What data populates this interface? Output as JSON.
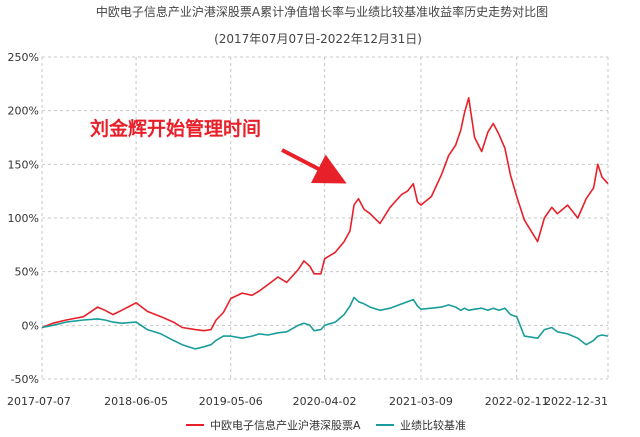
{
  "chart_data": {
    "type": "line",
    "title": "中欧电子信息产业沪港深股票A累计净值增长率与业绩比较基准收益率历史走势对比图",
    "subtitle": "(2017年07月07日-2022年12月31日)",
    "xlabel": "",
    "ylabel": "",
    "ylim": [
      -50,
      250
    ],
    "yticks": [
      "250%",
      "200%",
      "150%",
      "100%",
      "50%",
      "0%",
      "-50%"
    ],
    "xticks": [
      "2017-07-07",
      "2018-06-05",
      "2019-05-06",
      "2020-04-02",
      "2021-03-09",
      "2022-02-11",
      "2022-12-31"
    ],
    "grid": true,
    "legend_position": "bottom",
    "annotation": "刘金辉开始管理时间",
    "annotation_date": "2020-07-31",
    "series": [
      {
        "name": "中欧电子信息产业沪港深股票A",
        "color": "#e8202a",
        "x": [
          "2017-07-07",
          "2017-08-15",
          "2017-10-01",
          "2017-12-01",
          "2018-01-20",
          "2018-02-15",
          "2018-03-15",
          "2018-04-15",
          "2018-06-05",
          "2018-07-15",
          "2018-09-01",
          "2018-10-15",
          "2018-11-15",
          "2018-12-31",
          "2019-01-31",
          "2019-02-25",
          "2019-03-15",
          "2019-04-10",
          "2019-05-06",
          "2019-06-15",
          "2019-07-20",
          "2019-08-15",
          "2019-09-15",
          "2019-10-20",
          "2019-11-20",
          "2019-12-31",
          "2020-01-20",
          "2020-02-10",
          "2020-02-25",
          "2020-03-20",
          "2020-04-02",
          "2020-05-10",
          "2020-06-10",
          "2020-07-01",
          "2020-07-15",
          "2020-07-31",
          "2020-08-20",
          "2020-09-10",
          "2020-10-15",
          "2020-11-20",
          "2020-12-31",
          "2021-01-20",
          "2021-02-10",
          "2021-02-25",
          "2021-03-09",
          "2021-04-15",
          "2021-05-20",
          "2021-06-15",
          "2021-07-10",
          "2021-07-28",
          "2021-08-10",
          "2021-08-25",
          "2021-09-15",
          "2021-10-10",
          "2021-11-01",
          "2021-11-20",
          "2021-12-10",
          "2021-12-31",
          "2022-01-20",
          "2022-02-11",
          "2022-03-10",
          "2022-04-26",
          "2022-05-20",
          "2022-06-15",
          "2022-07-05",
          "2022-08-10",
          "2022-09-15",
          "2022-10-15",
          "2022-11-10",
          "2022-11-25",
          "2022-12-10",
          "2022-12-31"
        ],
        "values": [
          -2,
          2,
          5,
          8,
          17,
          14,
          10,
          14,
          21,
          13,
          8,
          3,
          -2,
          -4,
          -5,
          -4,
          5,
          12,
          25,
          30,
          28,
          32,
          38,
          45,
          40,
          52,
          60,
          55,
          48,
          48,
          62,
          68,
          78,
          88,
          112,
          118,
          108,
          104,
          95,
          110,
          122,
          125,
          132,
          115,
          112,
          120,
          140,
          158,
          168,
          182,
          198,
          212,
          175,
          162,
          180,
          188,
          178,
          165,
          140,
          120,
          98,
          78,
          100,
          110,
          104,
          112,
          100,
          118,
          128,
          150,
          138,
          132
        ]
      },
      {
        "name": "业绩比较基准",
        "color": "#1a9c9a",
        "x": [
          "2017-07-07",
          "2017-08-15",
          "2017-10-01",
          "2017-12-01",
          "2018-01-20",
          "2018-02-15",
          "2018-03-15",
          "2018-04-15",
          "2018-06-05",
          "2018-07-15",
          "2018-09-01",
          "2018-10-15",
          "2018-11-15",
          "2018-12-31",
          "2019-01-31",
          "2019-02-25",
          "2019-03-15",
          "2019-04-10",
          "2019-05-06",
          "2019-06-15",
          "2019-07-20",
          "2019-08-15",
          "2019-09-15",
          "2019-10-20",
          "2019-11-20",
          "2019-12-31",
          "2020-01-20",
          "2020-02-10",
          "2020-02-25",
          "2020-03-20",
          "2020-04-02",
          "2020-05-10",
          "2020-06-10",
          "2020-07-01",
          "2020-07-15",
          "2020-07-31",
          "2020-08-20",
          "2020-09-10",
          "2020-10-15",
          "2020-11-20",
          "2020-12-31",
          "2021-01-20",
          "2021-02-10",
          "2021-02-25",
          "2021-03-09",
          "2021-04-15",
          "2021-05-20",
          "2021-06-15",
          "2021-07-10",
          "2021-07-28",
          "2021-08-10",
          "2021-08-25",
          "2021-09-15",
          "2021-10-10",
          "2021-11-01",
          "2021-11-20",
          "2021-12-10",
          "2021-12-31",
          "2022-01-20",
          "2022-02-11",
          "2022-03-10",
          "2022-04-26",
          "2022-05-20",
          "2022-06-15",
          "2022-07-05",
          "2022-08-10",
          "2022-09-15",
          "2022-10-15",
          "2022-11-10",
          "2022-11-25",
          "2022-12-10",
          "2022-12-31"
        ],
        "values": [
          -2,
          0,
          3,
          5,
          6,
          5,
          3,
          2,
          3,
          -4,
          -8,
          -14,
          -18,
          -22,
          -20,
          -18,
          -14,
          -10,
          -10,
          -12,
          -10,
          -8,
          -9,
          -7,
          -6,
          0,
          2,
          0,
          -5,
          -4,
          0,
          3,
          10,
          18,
          26,
          22,
          20,
          17,
          14,
          16,
          20,
          22,
          24,
          18,
          15,
          16,
          17,
          19,
          17,
          14,
          16,
          14,
          15,
          16,
          14,
          16,
          14,
          16,
          10,
          8,
          -10,
          -12,
          -4,
          -2,
          -6,
          -8,
          -12,
          -18,
          -14,
          -10,
          -9,
          -10
        ]
      }
    ]
  }
}
